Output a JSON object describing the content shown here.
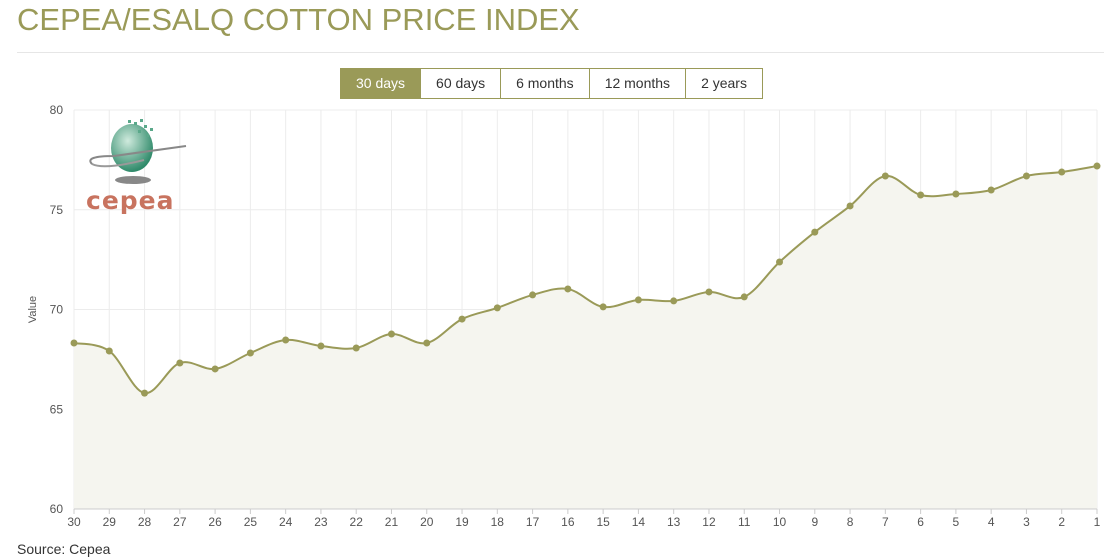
{
  "header": {
    "title": "CEPEA/ESALQ COTTON PRICE INDEX"
  },
  "range_buttons": [
    {
      "label": "30 days",
      "active": true
    },
    {
      "label": "60 days",
      "active": false
    },
    {
      "label": "6 months",
      "active": false
    },
    {
      "label": "12 months",
      "active": false
    },
    {
      "label": "2 years",
      "active": false
    }
  ],
  "logo": {
    "text": "cepea"
  },
  "source": "Source: Cepea",
  "colors": {
    "accent": "#9a9a58",
    "fill": "#f5f5ef",
    "grid": "#ececec"
  },
  "chart_data": {
    "type": "area",
    "title": "",
    "xlabel": "",
    "ylabel": "Value",
    "ylim": [
      60,
      80
    ],
    "yticks": [
      60,
      65,
      70,
      75,
      80
    ],
    "grid": true,
    "categories": [
      "30",
      "29",
      "28",
      "27",
      "26",
      "25",
      "24",
      "23",
      "22",
      "21",
      "20",
      "19",
      "18",
      "17",
      "16",
      "15",
      "14",
      "13",
      "12",
      "11",
      "10",
      "9",
      "8",
      "7",
      "6",
      "5",
      "4",
      "3",
      "2",
      "1"
    ],
    "values": [
      68.32,
      67.92,
      65.81,
      67.32,
      67.02,
      67.82,
      68.47,
      68.17,
      68.07,
      68.77,
      68.32,
      69.52,
      70.08,
      70.73,
      71.03,
      70.13,
      70.48,
      70.43,
      70.88,
      70.63,
      72.38,
      73.88,
      75.19,
      76.69,
      75.74,
      75.79,
      75.99,
      76.69,
      76.89,
      77.19
    ]
  }
}
